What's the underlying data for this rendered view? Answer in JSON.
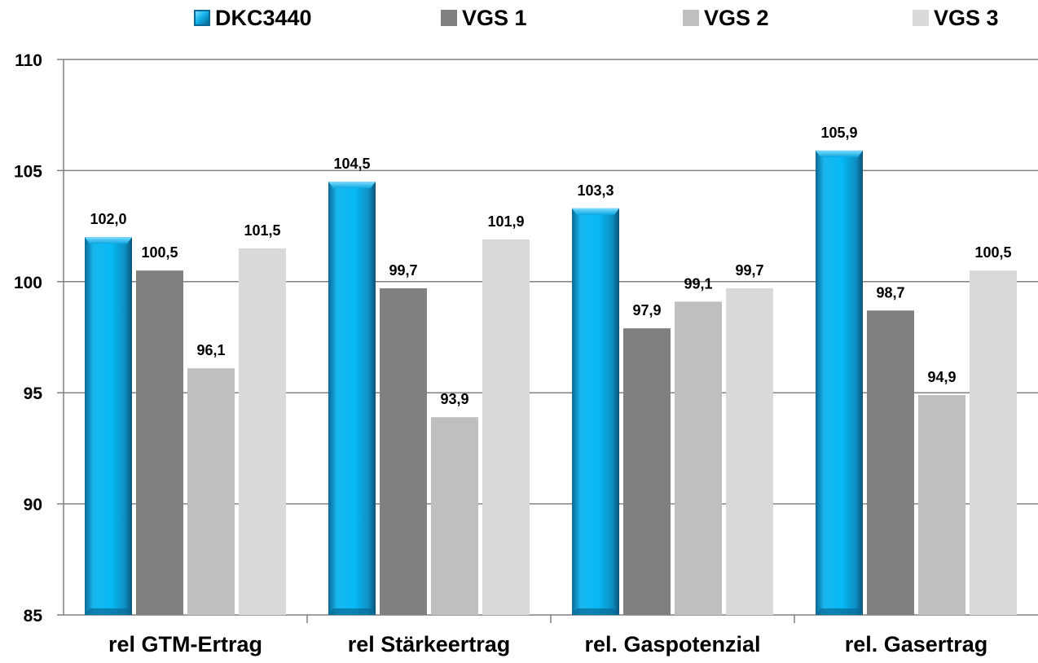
{
  "chart_data": {
    "type": "bar",
    "categories": [
      "rel GTM-Ertrag",
      "rel Stärkeertrag",
      "rel. Gaspotenzial",
      "rel. Gasertrag"
    ],
    "series": [
      {
        "name": "DKC3440",
        "values": [
          102.0,
          104.5,
          103.3,
          105.9
        ],
        "labels": [
          "102,0",
          "104,5",
          "103,3",
          "105,9"
        ],
        "color": "#12b4ec"
      },
      {
        "name": "VGS 1",
        "values": [
          100.5,
          99.7,
          97.9,
          98.7
        ],
        "labels": [
          "100,5",
          "99,7",
          "97,9",
          "98,7"
        ],
        "color": "#808080"
      },
      {
        "name": "VGS 2",
        "values": [
          96.1,
          93.9,
          99.1,
          94.9
        ],
        "labels": [
          "96,1",
          "93,9",
          "99,1",
          "94,9"
        ],
        "color": "#bfbfbf"
      },
      {
        "name": "VGS 3",
        "values": [
          101.5,
          101.9,
          99.7,
          100.5
        ],
        "labels": [
          "101,5",
          "101,9",
          "99,7",
          "100,5"
        ],
        "color": "#d9d9d9"
      }
    ],
    "yticks": [
      "85",
      "90",
      "95",
      "100",
      "105",
      "110"
    ],
    "ylim": [
      85,
      110
    ],
    "grid": true,
    "legend_position": "top",
    "title": "",
    "xlabel": "",
    "ylabel": ""
  }
}
